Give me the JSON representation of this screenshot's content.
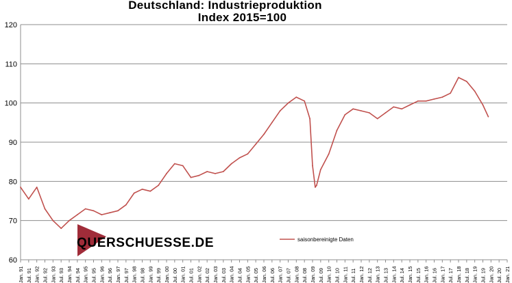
{
  "chart_data": {
    "type": "line",
    "title": "Deutschland:  Industrieproduktion",
    "subtitle": "Index  2015=100",
    "xlabel": "",
    "ylabel": "",
    "ylim": [
      60,
      120
    ],
    "yticks": [
      60,
      70,
      80,
      90,
      100,
      110,
      120
    ],
    "xlim": [
      "Jan. 91",
      "Jan. 21"
    ],
    "grid": true,
    "legend_position": "bottom-right",
    "x_tick_labels": [
      "Jan. 91",
      "Jul. 91",
      "Jan. 92",
      "Jul. 92",
      "Jan. 93",
      "Jul. 93",
      "Jan. 94",
      "Jul. 94",
      "Jan. 95",
      "Jul. 95",
      "Jan. 96",
      "Jul. 96",
      "Jan. 97",
      "Jul. 97",
      "Jan. 98",
      "Jul. 98",
      "Jan. 99",
      "Jul. 99",
      "Jan. 00",
      "Jul. 00",
      "Jan. 01",
      "Jul. 01",
      "Jan. 02",
      "Jul. 02",
      "Jan. 03",
      "Jul. 03",
      "Jan. 04",
      "Jul. 04",
      "Jan. 05",
      "Jul. 05",
      "Jan. 06",
      "Jul. 06",
      "Jan. 07",
      "Jul. 07",
      "Jan. 08",
      "Jul. 08",
      "Jan. 09",
      "Jul. 09",
      "Jan. 10",
      "Jul. 10",
      "Jan. 11",
      "Jul. 11",
      "Jan. 12",
      "Jul. 12",
      "Jan. 13",
      "Jul. 13",
      "Jan. 14",
      "Jul. 14",
      "Jan. 15",
      "Jul. 15",
      "Jan. 16",
      "Jul. 16",
      "Jan. 17",
      "Jul. 17",
      "Jan. 18",
      "Jul. 18",
      "Jan. 19",
      "Jul. 19",
      "Jan. 20",
      "Jul. 20",
      "Jan. 21"
    ],
    "series": [
      {
        "name": "saisonbereinigte Daten",
        "color": "#c0504d",
        "x": [
          "Jan. 91",
          "Jul. 91",
          "Jan. 92",
          "Jul. 92",
          "Jan. 93",
          "Jul. 93",
          "Jan. 94",
          "Jul. 94",
          "Jan. 95",
          "Jul. 95",
          "Jan. 96",
          "Jul. 96",
          "Jan. 97",
          "Jul. 97",
          "Jan. 98",
          "Jul. 98",
          "Jan. 99",
          "Jul. 99",
          "Jan. 00",
          "Jul. 00",
          "Jan. 01",
          "Jul. 01",
          "Jan. 02",
          "Jul. 02",
          "Jan. 03",
          "Jul. 03",
          "Jan. 04",
          "Jul. 04",
          "Jan. 05",
          "Jul. 05",
          "Jan. 06",
          "Jul. 06",
          "Jan. 07",
          "Jul. 07",
          "Jan. 08",
          "Jul. 08",
          "Nov. 08",
          "Jan. 09",
          "Mar. 09",
          "Apr. 09",
          "Jul. 09",
          "Jan. 10",
          "Jul. 10",
          "Jan. 11",
          "Jul. 11",
          "Jan. 12",
          "Jul. 12",
          "Jan. 13",
          "Jul. 13",
          "Jan. 14",
          "Jul. 14",
          "Jan. 15",
          "Jul. 15",
          "Jan. 16",
          "Jul. 16",
          "Jan. 17",
          "Jul. 17",
          "Jan. 18",
          "Jul. 18",
          "Jan. 19",
          "Jul. 19",
          "Nov. 19"
        ],
        "values": [
          78.5,
          75.5,
          78.5,
          73.0,
          70.0,
          68.0,
          70.0,
          71.5,
          73.0,
          72.5,
          71.5,
          72.0,
          72.5,
          74.0,
          77.0,
          78.0,
          77.5,
          79.0,
          82.0,
          84.5,
          84.0,
          81.0,
          81.5,
          82.5,
          82.0,
          82.5,
          84.5,
          86.0,
          87.0,
          89.5,
          92.0,
          95.0,
          98.0,
          100.0,
          101.5,
          100.5,
          96.0,
          84.0,
          78.5,
          79.0,
          83.0,
          87.0,
          93.0,
          97.0,
          98.5,
          98.0,
          97.5,
          96.0,
          97.5,
          99.0,
          98.5,
          99.5,
          100.5,
          100.5,
          101.0,
          101.5,
          102.5,
          106.5,
          105.5,
          103.0,
          99.5,
          96.5
        ]
      }
    ]
  },
  "watermark": {
    "text": "QUERSCHUESSE.DE",
    "color": "#a02c39"
  }
}
